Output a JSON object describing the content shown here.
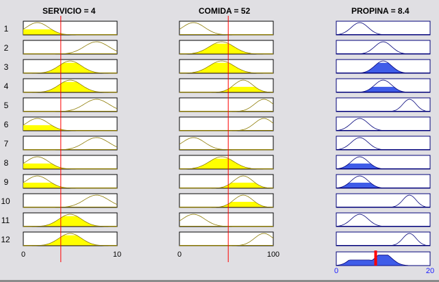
{
  "headers": {
    "servicio": "SERVICIO = 4",
    "comida": "COMIDA = 52",
    "propina": "PROPINA = 8.4"
  },
  "rules": [
    "1",
    "2",
    "3",
    "4",
    "5",
    "6",
    "7",
    "8",
    "9",
    "10",
    "11",
    "12"
  ],
  "axes": {
    "servicio": {
      "min": 0,
      "max": 10,
      "ticks": [
        "0",
        "10"
      ],
      "input": 4
    },
    "comida": {
      "min": 0,
      "max": 100,
      "ticks": [
        "0",
        "100"
      ],
      "input": 52
    },
    "propina": {
      "min": 0,
      "max": 20,
      "ticks": [
        "0",
        "20"
      ],
      "output": 8.4
    }
  },
  "colors": {
    "yellow": "#ffff00",
    "olive": "#8c7a00",
    "blue": "#3f5ce8",
    "navy": "#00007a",
    "redline": "#ff0000"
  }
}
